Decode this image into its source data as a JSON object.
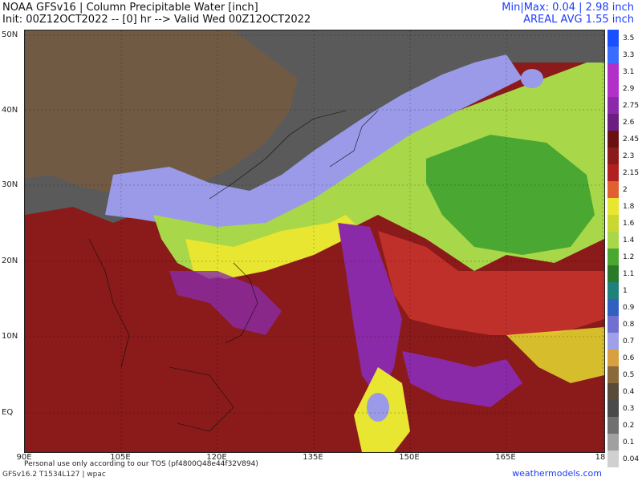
{
  "header": {
    "title": "NOAA GFSv16 | Column Precipitable Water [inch]",
    "init_line": "Init: 00Z12OCT2022 -- [0] hr --> Valid Wed 00Z12OCT2022",
    "minmax": "Min|Max: 0.04 | 2.98 inch",
    "areal_avg": "AREAL AVG 1.55 inch"
  },
  "map": {
    "lat_labels": [
      "50N",
      "40N",
      "30N",
      "20N",
      "10N",
      "EQ"
    ],
    "lon_labels": [
      "90E",
      "105E",
      "120E",
      "135E",
      "150E",
      "165E",
      "18"
    ],
    "tos_notice": "Personal use only according to our TOS (pf4800Q48e44f32V894)",
    "region_palette": {
      "land_dry": "#5a5a5a",
      "land_brown": "#7a5a3a",
      "moist_dark": "#8b1a1a",
      "moist_red": "#c0302a",
      "purple": "#8a2aa8",
      "yellow": "#e8e630",
      "green": "#4aa832",
      "light_green": "#a8d84a",
      "lavender": "#9a9ae8"
    }
  },
  "colorbar": {
    "labels": [
      "3.5",
      "3.3",
      "3.1",
      "2.9",
      "2.75",
      "2.6",
      "2.45",
      "2.3",
      "2.15",
      "2",
      "1.8",
      "1.6",
      "1.4",
      "1.2",
      "1.1",
      "1",
      "0.9",
      "0.8",
      "0.7",
      "0.6",
      "0.5",
      "0.4",
      "0.3",
      "0.2",
      "0.1",
      "0.04"
    ],
    "colors": [
      "#1a4fff",
      "#3a6cff",
      "#b030c8",
      "#b030c8",
      "#8a2aa8",
      "#6a1e80",
      "#6a1010",
      "#8b1a1a",
      "#b02020",
      "#e06030",
      "#e8e630",
      "#c8d830",
      "#a8d84a",
      "#4aa832",
      "#2a7a2a",
      "#20807a",
      "#3060c0",
      "#7070d0",
      "#a0a0e8",
      "#d8a040",
      "#8a6a3a",
      "#5a4a3a",
      "#4a4a4a",
      "#707070",
      "#a0a0a0",
      "#d0d0d0"
    ]
  },
  "footer": {
    "model_info": "GFSv16.2 T1534L127 | wpac",
    "site": "weathermodels.com"
  }
}
